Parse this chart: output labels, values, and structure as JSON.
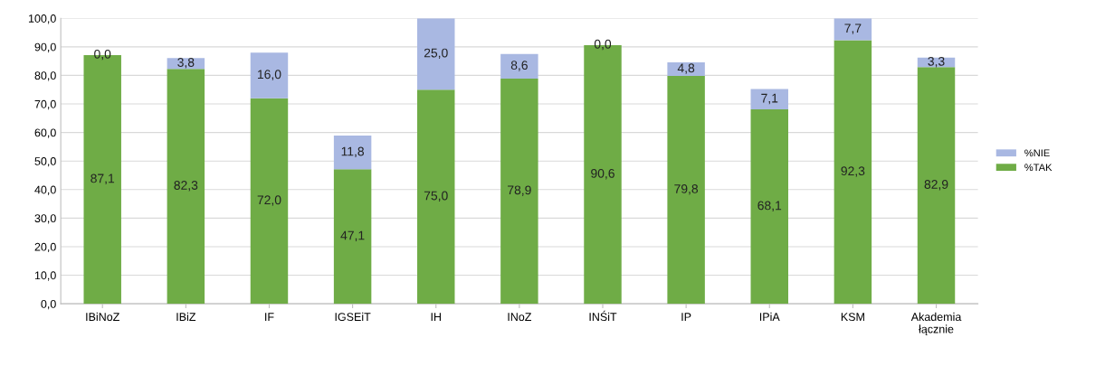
{
  "chart_data": {
    "type": "bar",
    "stacked": true,
    "categories": [
      "IBiNoZ",
      "IBiZ",
      "IF",
      "IGSEiT",
      "IH",
      "INoZ",
      "INŚiT",
      "IP",
      "IPiA",
      "KSM",
      "Akademia\nłącznie"
    ],
    "series": [
      {
        "name": "%TAK",
        "color": "#6fac46",
        "values": [
          87.1,
          82.3,
          72.0,
          47.1,
          75.0,
          78.9,
          90.6,
          79.8,
          68.1,
          92.3,
          82.9
        ],
        "value_labels": [
          "87,1",
          "82,3",
          "72,0",
          "47,1",
          "75,0",
          "78,9",
          "90,6",
          "79,8",
          "68,1",
          "92,3",
          "82,9"
        ]
      },
      {
        "name": "%NIE",
        "color": "#a9b8e2",
        "values": [
          0.0,
          3.8,
          16.0,
          11.8,
          25.0,
          8.6,
          0.0,
          4.8,
          7.1,
          7.7,
          3.3
        ],
        "value_labels": [
          "0,0",
          "3,8",
          "16,0",
          "11,8",
          "25,0",
          "8,6",
          "0,0",
          "4,8",
          "7,1",
          "7,7",
          "3,3"
        ]
      }
    ],
    "ylim": [
      0,
      100
    ],
    "yticks": [
      {
        "value": 0,
        "label": "0,0"
      },
      {
        "value": 10,
        "label": "10,0"
      },
      {
        "value": 20,
        "label": "20,0"
      },
      {
        "value": 30,
        "label": "30,0"
      },
      {
        "value": 40,
        "label": "40,0"
      },
      {
        "value": 50,
        "label": "50,0"
      },
      {
        "value": 60,
        "label": "60,0"
      },
      {
        "value": 70,
        "label": "70,0"
      },
      {
        "value": 80,
        "label": "80,0"
      },
      {
        "value": 90,
        "label": "90,0"
      },
      {
        "value": 100,
        "label": "100,0"
      }
    ],
    "grid": "y",
    "legend": "right"
  }
}
